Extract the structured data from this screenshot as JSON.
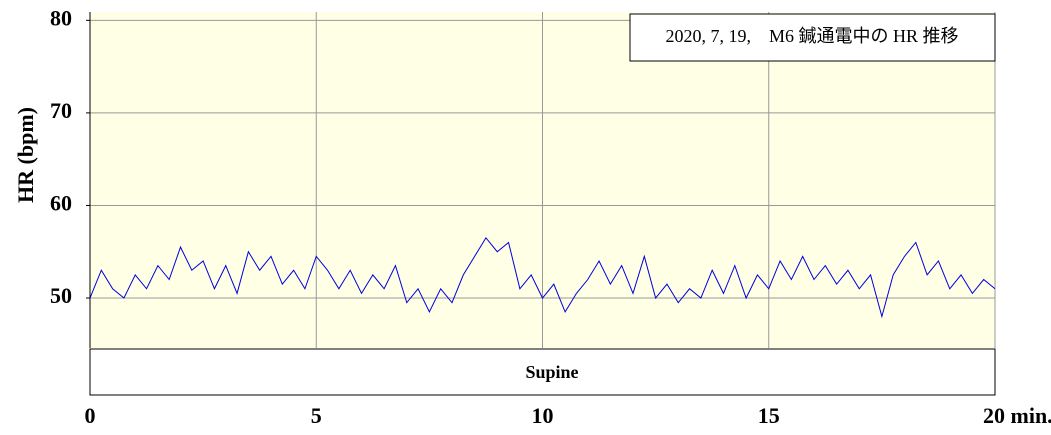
{
  "chart_data": {
    "type": "line",
    "ylabel": "HR (bpm)",
    "annotation": "2020, 7, 19,　M6 鍼通電中の HR 推移",
    "band_label": "Supine",
    "color": "#0000dd",
    "background": "#ffffe6",
    "grid": true,
    "xlim": [
      0,
      20
    ],
    "xticks": [
      0,
      5,
      10,
      15,
      {
        "value": 20,
        "label": "20 min."
      }
    ],
    "ylim": [
      44.6,
      80.9
    ],
    "yticks": [
      50,
      60,
      70,
      80
    ],
    "x": [
      0,
      0.25,
      0.5,
      0.75,
      1,
      1.25,
      1.5,
      1.75,
      2,
      2.25,
      2.5,
      2.75,
      3,
      3.25,
      3.5,
      3.75,
      4,
      4.25,
      4.5,
      4.75,
      5,
      5.25,
      5.5,
      5.75,
      6,
      6.25,
      6.5,
      6.75,
      7,
      7.25,
      7.5,
      7.75,
      8,
      8.25,
      8.5,
      8.75,
      9,
      9.25,
      9.5,
      9.75,
      10,
      10.25,
      10.5,
      10.75,
      11,
      11.25,
      11.5,
      11.75,
      12,
      12.25,
      12.5,
      12.75,
      13,
      13.25,
      13.5,
      13.75,
      14,
      14.25,
      14.5,
      14.75,
      15,
      15.25,
      15.5,
      15.75,
      16,
      16.25,
      16.5,
      16.75,
      17,
      17.25,
      17.5,
      17.75,
      18,
      18.25,
      18.5,
      18.75,
      19,
      19.25,
      19.5,
      19.75,
      20
    ],
    "values": [
      50,
      53,
      51,
      50,
      52.5,
      51,
      53.5,
      52,
      55.5,
      53,
      54,
      51,
      53.5,
      50.5,
      55,
      53,
      54.5,
      51.5,
      53,
      51,
      54.5,
      53,
      51,
      53,
      50.5,
      52.5,
      51,
      53.5,
      49.5,
      51,
      48.5,
      51,
      49.5,
      52.5,
      54.5,
      56.5,
      55,
      56,
      51,
      52.5,
      50,
      51.5,
      48.5,
      50.5,
      52,
      54,
      51.5,
      53.5,
      50.5,
      54.5,
      50,
      51.5,
      49.5,
      51,
      50,
      53,
      50.5,
      53.5,
      50,
      52.5,
      51,
      54,
      52,
      54.5,
      52,
      53.5,
      51.5,
      53,
      51,
      52.5,
      48,
      52.5,
      54.5,
      56,
      52.5,
      54,
      51,
      52.5,
      50.5,
      52,
      51
    ]
  }
}
